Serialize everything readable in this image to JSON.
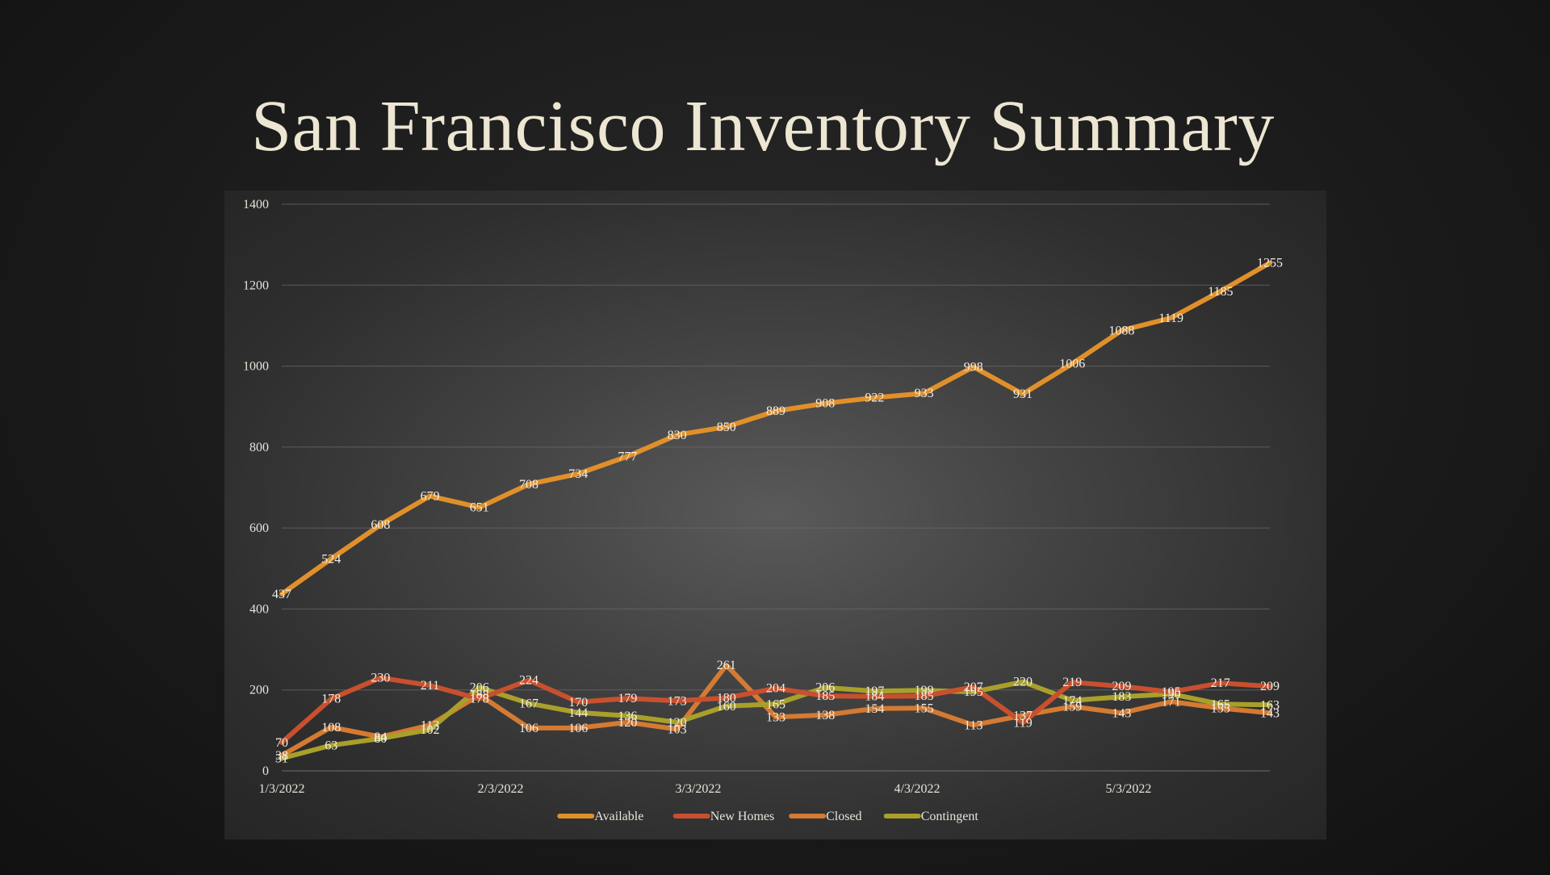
{
  "slide": {
    "title": "San Francisco Inventory Summary"
  },
  "chart_data": {
    "type": "line",
    "title": "",
    "xlabel": "",
    "ylabel": "",
    "ylim": [
      0,
      1400
    ],
    "yticks": [
      0,
      200,
      400,
      600,
      800,
      1000,
      1200,
      1400
    ],
    "x_tick_labels": [
      {
        "label": "1/3/2022",
        "index": 0
      },
      {
        "label": "2/3/2022",
        "index": 4.43
      },
      {
        "label": "3/3/2022",
        "index": 8.43
      },
      {
        "label": "4/3/2022",
        "index": 12.86
      },
      {
        "label": "5/3/2022",
        "index": 17.14
      }
    ],
    "x": [
      "1/3/2022",
      "1/10/2022",
      "1/17/2022",
      "1/24/2022",
      "1/31/2022",
      "2/7/2022",
      "2/14/2022",
      "2/21/2022",
      "2/28/2022",
      "3/7/2022",
      "3/14/2022",
      "3/21/2022",
      "3/28/2022",
      "4/4/2022",
      "4/11/2022",
      "4/18/2022",
      "4/25/2022",
      "5/2/2022",
      "5/9/2022",
      "5/16/2022",
      "5/23/2022"
    ],
    "grid": true,
    "legend_position": "bottom",
    "series": [
      {
        "name": "Available",
        "color": "#e0902a",
        "values": [
          437,
          524,
          608,
          679,
          651,
          708,
          734,
          777,
          830,
          850,
          889,
          908,
          922,
          933,
          998,
          931,
          1006,
          1088,
          1119,
          1185,
          1255
        ]
      },
      {
        "name": "New Homes",
        "color": "#c8502e",
        "values": [
          70,
          178,
          230,
          211,
          178,
          224,
          170,
          179,
          173,
          180,
          204,
          185,
          184,
          185,
          207,
          119,
          219,
          209,
          195,
          217,
          209
        ]
      },
      {
        "name": "Closed",
        "color": "#d47a32",
        "values": [
          38,
          108,
          84,
          113,
          188,
          106,
          106,
          120,
          103,
          261,
          133,
          138,
          154,
          155,
          113,
          137,
          159,
          143,
          171,
          155,
          143
        ]
      },
      {
        "name": "Contingent",
        "color": "#a8a02a",
        "values": [
          31,
          63,
          80,
          102,
          206,
          167,
          144,
          136,
          120,
          160,
          165,
          206,
          197,
          199,
          195,
          220,
          174,
          183,
          190,
          165,
          163
        ]
      }
    ]
  }
}
